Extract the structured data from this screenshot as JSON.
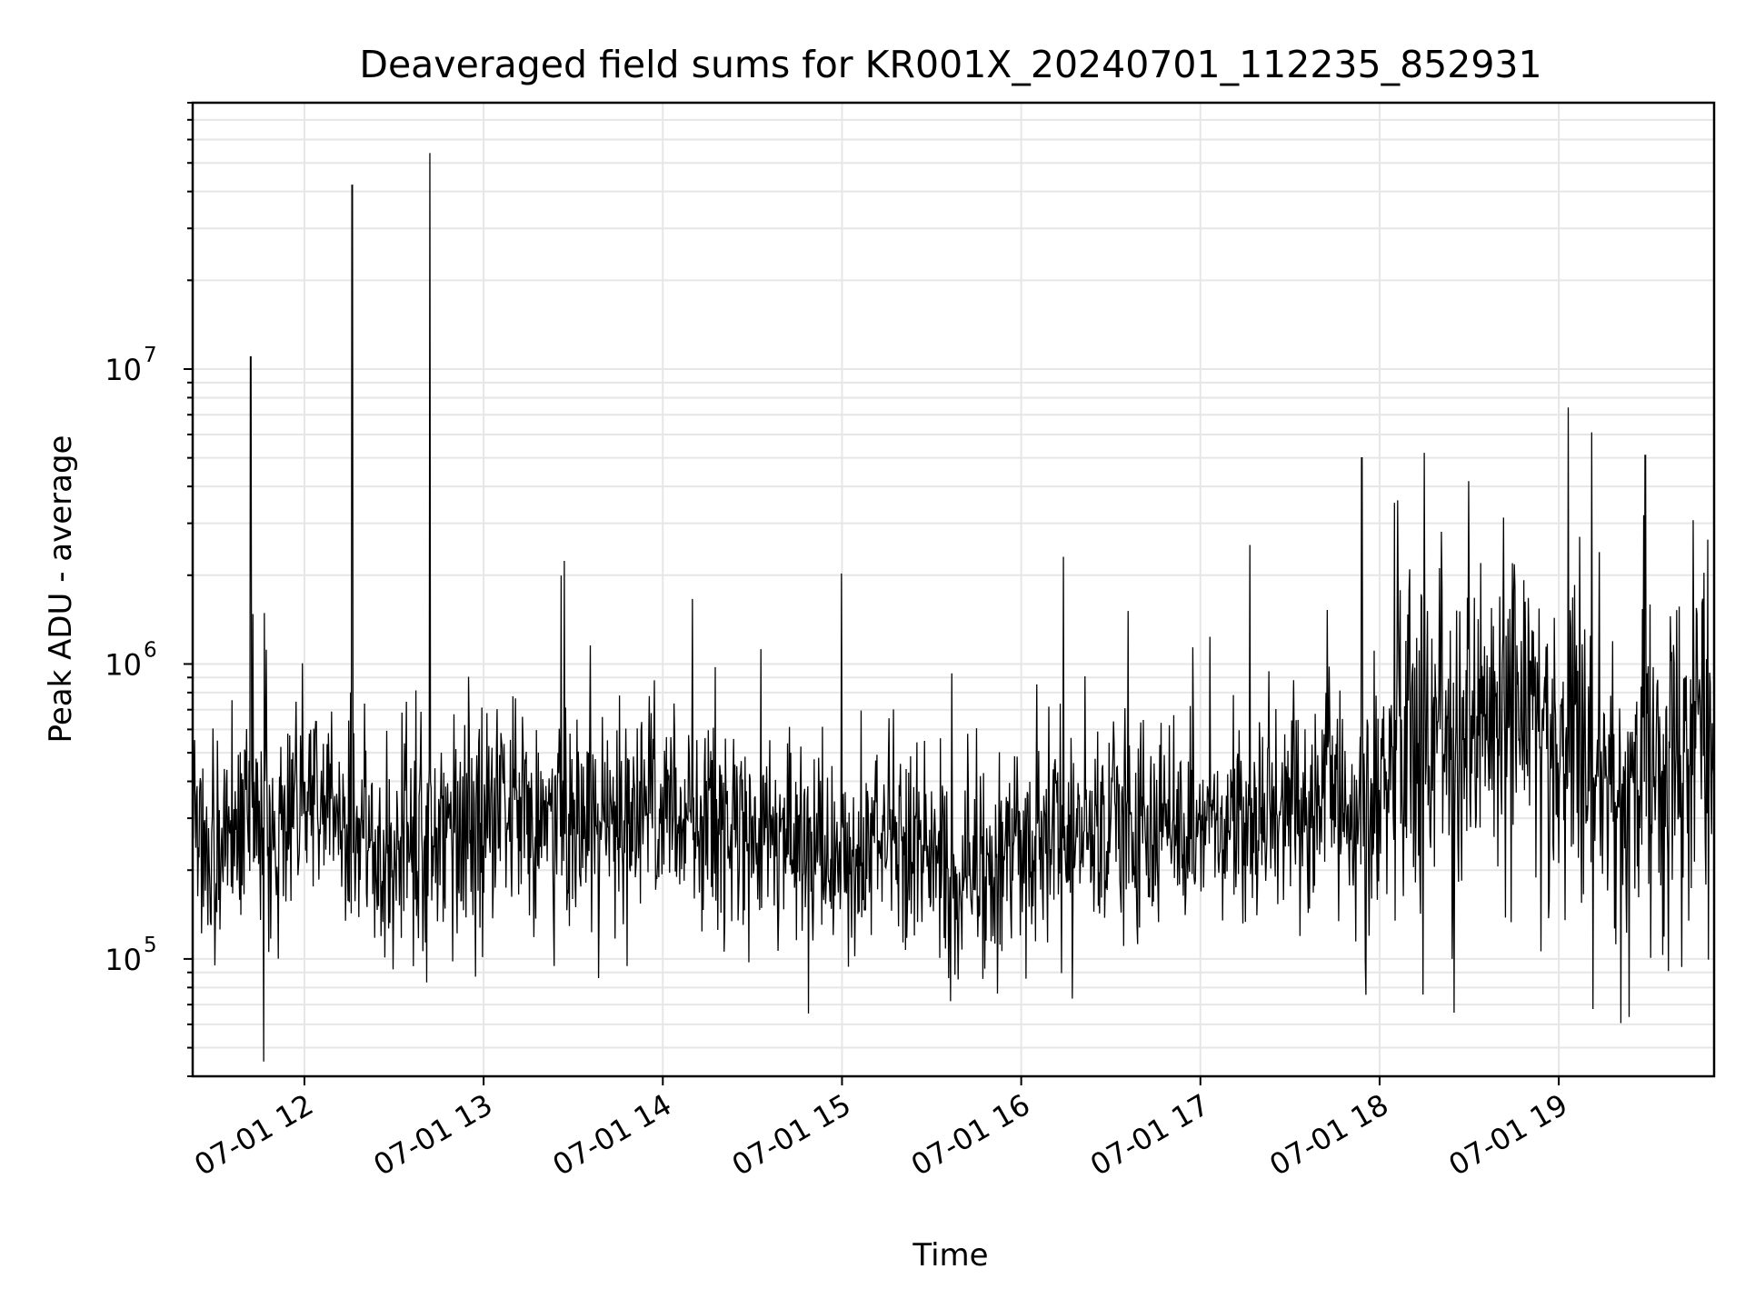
{
  "chart_data": {
    "type": "line",
    "title": "Deaveraged field sums for KR001X_20240701_112235_852931",
    "xlabel": "Time",
    "ylabel": "Peak ADU - average",
    "x_axis": {
      "type": "time",
      "range": [
        "2024-07-01T11:22:35",
        "2024-07-01T19:52:00"
      ],
      "tick_labels": [
        "07-01 12",
        "07-01 13",
        "07-01 14",
        "07-01 15",
        "07-01 16",
        "07-01 17",
        "07-01 18",
        "07-01 19"
      ],
      "tick_hours": [
        12,
        13,
        14,
        15,
        16,
        17,
        18,
        19
      ]
    },
    "y_axis": {
      "scale": "log",
      "range": [
        40000,
        80000000
      ],
      "tick_values": [
        100000,
        1000000,
        10000000
      ],
      "tick_labels": [
        {
          "base": "10",
          "exp": "5"
        },
        {
          "base": "10",
          "exp": "6"
        },
        {
          "base": "10",
          "exp": "7"
        }
      ]
    },
    "grid": true,
    "line_color": "#000000",
    "grid_color": "#e6e6e6",
    "series": [
      {
        "x": [
          "2024-07-01T11:23",
          "2024-07-01T11:30",
          "2024-07-01T11:38",
          "2024-07-01T11:48",
          "2024-07-01T12:00",
          "2024-07-01T12:15",
          "2024-07-01T12:30",
          "2024-07-01T12:41",
          "2024-07-01T12:55",
          "2024-07-01T13:10",
          "2024-07-01T13:30",
          "2024-07-01T13:45",
          "2024-07-01T14:00",
          "2024-07-01T14:15",
          "2024-07-01T14:30",
          "2024-07-01T14:45",
          "2024-07-01T15:00",
          "2024-07-01T15:15",
          "2024-07-01T15:30",
          "2024-07-01T15:45",
          "2024-07-01T16:00",
          "2024-07-01T16:15",
          "2024-07-01T16:30",
          "2024-07-01T16:45",
          "2024-07-01T17:00",
          "2024-07-01T17:15",
          "2024-07-01T17:30",
          "2024-07-01T17:45",
          "2024-07-01T18:00",
          "2024-07-01T18:10",
          "2024-07-01T18:20",
          "2024-07-01T18:30",
          "2024-07-01T18:45",
          "2024-07-01T19:00",
          "2024-07-01T19:10",
          "2024-07-01T19:20",
          "2024-07-01T19:30",
          "2024-07-01T19:45",
          "2024-07-01T19:52"
        ],
        "y": [
          300000,
          230000,
          260000,
          280000,
          330000,
          260000,
          240000,
          250000,
          300000,
          310000,
          270000,
          280000,
          330000,
          270000,
          250000,
          230000,
          220000,
          240000,
          220000,
          200000,
          230000,
          270000,
          300000,
          290000,
          280000,
          310000,
          350000,
          330000,
          350000,
          520000,
          600000,
          550000,
          800000,
          680000,
          420000,
          330000,
          470000,
          560000,
          500000
        ],
        "spikes": [
          {
            "x": "2024-07-01T11:42",
            "y": 11000000
          },
          {
            "x": "2024-07-01T12:16",
            "y": 42000000
          },
          {
            "x": "2024-07-01T12:42",
            "y": 54000000
          },
          {
            "x": "2024-07-01T17:54",
            "y": 5000000
          },
          {
            "x": "2024-07-01T18:15",
            "y": 5200000
          },
          {
            "x": "2024-07-01T19:11",
            "y": 6100000
          },
          {
            "x": "2024-07-01T19:29",
            "y": 5100000
          }
        ]
      }
    ]
  }
}
